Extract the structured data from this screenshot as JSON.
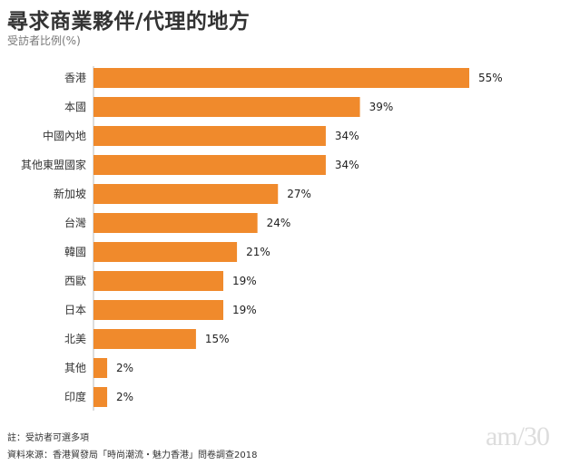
{
  "chart_data": {
    "type": "bar",
    "orientation": "horizontal",
    "title": "尋求商業夥伴/代理的地方",
    "ylabel": "受訪者比例(%)",
    "categories": [
      "香港",
      "本國",
      "中國內地",
      "其他東盟國家",
      "新加坡",
      "台灣",
      "韓國",
      "西歐",
      "日本",
      "北美",
      "其他",
      "印度"
    ],
    "values": [
      55,
      39,
      34,
      34,
      27,
      24,
      21,
      19,
      19,
      15,
      2,
      2
    ],
    "value_suffix": "%",
    "xlim": [
      0,
      55
    ],
    "grid": false,
    "bar_color": "#F08A2C"
  },
  "notes": {
    "note": "註：受訪者可選多項",
    "source": "資料來源：香港貿發局「時尚潮流・魅力香港」問卷調查2018"
  },
  "watermark": "am730"
}
